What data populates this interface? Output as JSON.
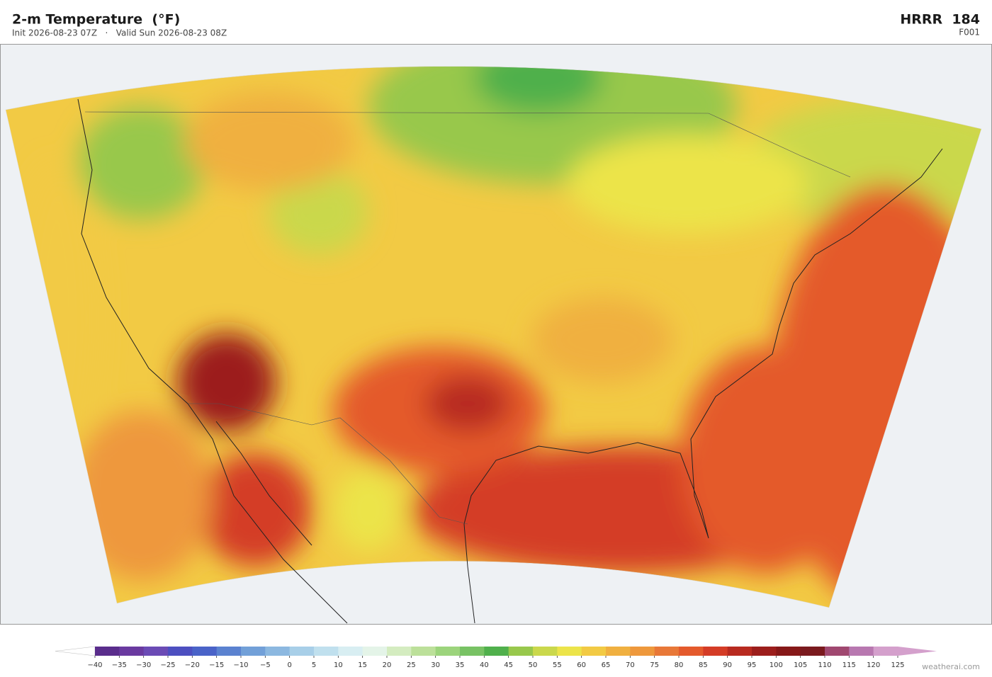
{
  "header": {
    "title": "2-m Temperature  (°F)",
    "subtitle": "Init 2026-08-23 07Z   ·   Valid Sun 2026-08-23 08Z",
    "model": "HRRR  184",
    "forecast_hour": "F001"
  },
  "colorbar": {
    "ticks": [
      {
        "value": -40,
        "label": "−40"
      },
      {
        "value": -35,
        "label": "−35"
      },
      {
        "value": -30,
        "label": "−30"
      },
      {
        "value": -25,
        "label": "−25"
      },
      {
        "value": -20,
        "label": "−20"
      },
      {
        "value": -15,
        "label": "−15"
      },
      {
        "value": -10,
        "label": "−10"
      },
      {
        "value": -5,
        "label": "−5"
      },
      0,
      5,
      10,
      15,
      20,
      25,
      30,
      35,
      40,
      45,
      50,
      55,
      60,
      65,
      70,
      75,
      80,
      85,
      90,
      95,
      100,
      105,
      110,
      115,
      120,
      125
    ],
    "colors": [
      "#5a2d8c",
      "#6a3aa0",
      "#6b4bb5",
      "#4d4fc0",
      "#4a63c8",
      "#5b82d0",
      "#72a0d8",
      "#8cb8e0",
      "#a8cfe8",
      "#c0e0ee",
      "#d8eef2",
      "#e4f4e8",
      "#d4ecc0",
      "#bce09a",
      "#9cd47c",
      "#78c264",
      "#50b04c",
      "#98c84c",
      "#cad84c",
      "#ece44a",
      "#f2ca44",
      "#f0b040",
      "#ee983c",
      "#e87838",
      "#e45a2c",
      "#d43c26",
      "#b82a20",
      "#9c1e1c",
      "#861818",
      "#7a1a1e",
      "#a04870",
      "#b878b0",
      "#d4a0cc"
    ],
    "under_color": "#ffffff",
    "over_color": "#d4a0cc"
  },
  "watermark": "weatherai.com"
}
